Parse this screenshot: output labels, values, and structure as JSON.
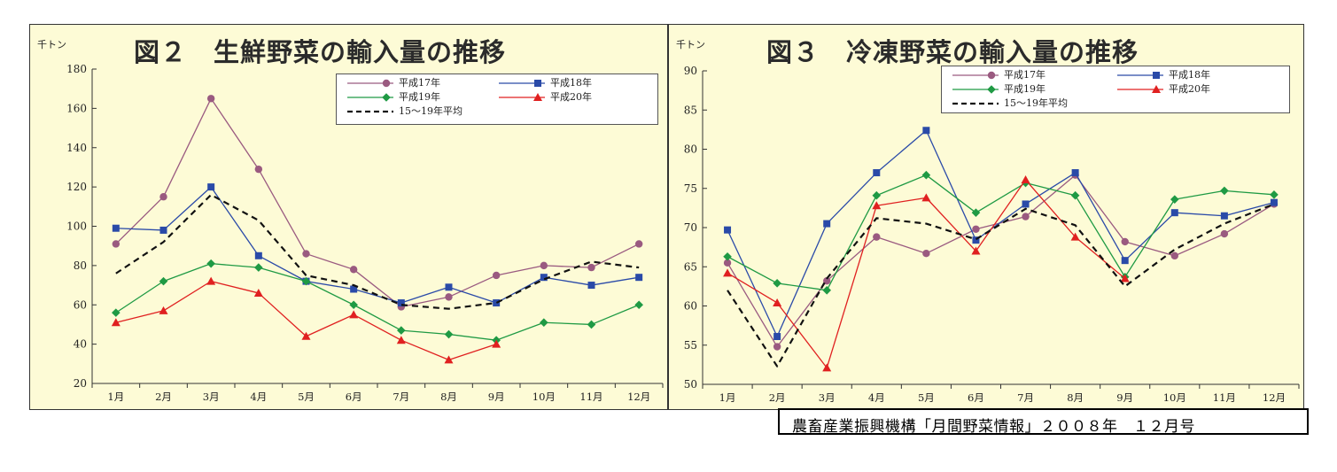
{
  "source": "農畜産業振興機構「月間野菜情報」２００８年　１２月号",
  "chart_data": [
    {
      "type": "line",
      "title": "図２　生鮮野菜の輸入量の推移",
      "unit_label": "千トン",
      "categories": [
        "1月",
        "2月",
        "3月",
        "4月",
        "5月",
        "6月",
        "7月",
        "8月",
        "9月",
        "10月",
        "11月",
        "12月"
      ],
      "ylim": [
        20,
        180
      ],
      "yticks": [
        20,
        40,
        60,
        80,
        100,
        120,
        140,
        160,
        180
      ],
      "grid": false,
      "legend_position": "top-right",
      "series": [
        {
          "name": "平成17年",
          "color": "#9a5a80",
          "marker": "circle",
          "values": [
            91,
            115,
            165,
            129,
            86,
            78,
            59,
            64,
            75,
            80,
            79,
            91
          ]
        },
        {
          "name": "平成18年",
          "color": "#2a4aa8",
          "marker": "square",
          "values": [
            99,
            98,
            120,
            85,
            72,
            68,
            61,
            69,
            61,
            74,
            70,
            74
          ]
        },
        {
          "name": "平成19年",
          "color": "#1f9a44",
          "marker": "diamond",
          "values": [
            56,
            72,
            81,
            79,
            72,
            60,
            47,
            45,
            42,
            51,
            50,
            60
          ]
        },
        {
          "name": "平成20年",
          "color": "#e02020",
          "marker": "triangle",
          "values": [
            51,
            57,
            72,
            66,
            44,
            55,
            42,
            32,
            40,
            null,
            null,
            null
          ]
        },
        {
          "name": "15～19年平均",
          "color": "#111111",
          "marker": "none",
          "dashed": true,
          "values": [
            76,
            92,
            116,
            103,
            75,
            70,
            60,
            58,
            61,
            73,
            82,
            79
          ]
        }
      ]
    },
    {
      "type": "line",
      "title": "図３　冷凍野菜の輸入量の推移",
      "unit_label": "千トン",
      "categories": [
        "1月",
        "2月",
        "3月",
        "4月",
        "5月",
        "6月",
        "7月",
        "8月",
        "9月",
        "10月",
        "11月",
        "12月"
      ],
      "ylim": [
        50,
        90
      ],
      "yticks": [
        50,
        55,
        60,
        65,
        70,
        75,
        80,
        85,
        90
      ],
      "grid": false,
      "legend_position": "top-right",
      "series": [
        {
          "name": "平成17年",
          "color": "#9a5a80",
          "marker": "circle",
          "values": [
            65.5,
            54.8,
            63.2,
            68.8,
            66.7,
            69.8,
            71.4,
            76.7,
            68.2,
            66.4,
            69.2,
            73.0
          ]
        },
        {
          "name": "平成18年",
          "color": "#2a4aa8",
          "marker": "square",
          "values": [
            69.7,
            56.1,
            70.5,
            77.0,
            82.4,
            68.4,
            73.0,
            77.0,
            65.8,
            71.9,
            71.5,
            73.2
          ]
        },
        {
          "name": "平成19年",
          "color": "#1f9a44",
          "marker": "diamond",
          "values": [
            66.3,
            62.9,
            62.0,
            74.1,
            76.7,
            71.9,
            75.7,
            74.1,
            63.7,
            73.6,
            74.7,
            74.2
          ]
        },
        {
          "name": "平成20年",
          "color": "#e02020",
          "marker": "triangle",
          "values": [
            64.2,
            60.4,
            52.1,
            72.8,
            73.8,
            67.0,
            76.1,
            68.8,
            63.5,
            null,
            null,
            null
          ]
        },
        {
          "name": "15～19年平均",
          "color": "#111111",
          "marker": "none",
          "dashed": true,
          "values": [
            62.0,
            52.3,
            63.5,
            71.2,
            70.5,
            68.5,
            72.4,
            70.3,
            62.5,
            67.2,
            70.5,
            73.0
          ]
        }
      ]
    }
  ]
}
